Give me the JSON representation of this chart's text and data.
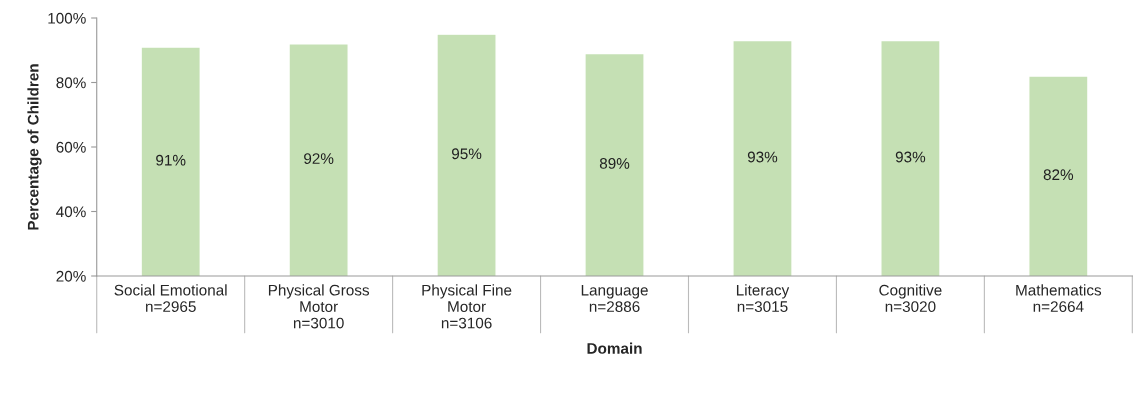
{
  "chart_data": {
    "type": "bar",
    "categories": [
      "Social Emotional\nn=2965",
      "Physical Gross\nMotor\nn=3010",
      "Physical Fine\nMotor\nn=3106",
      "Language\nn=2886",
      "Literacy\nn=3015",
      "Cognitive\nn=3020",
      "Mathematics\nn=2664"
    ],
    "values": [
      91,
      92,
      95,
      89,
      93,
      93,
      82
    ],
    "value_labels": [
      "91%",
      "92%",
      "95%",
      "89%",
      "93%",
      "93%",
      "82%"
    ],
    "color": "#c5e0b4",
    "xlabel": "Domain",
    "ylabel": "Percentage of Children",
    "ylim": [
      20,
      100
    ],
    "yticks": [
      {
        "value": 20,
        "label": "20%"
      },
      {
        "value": 40,
        "label": "40%"
      },
      {
        "value": 60,
        "label": "60%"
      },
      {
        "value": 80,
        "label": "80%"
      },
      {
        "value": 100,
        "label": "100%"
      }
    ],
    "grid": false
  }
}
